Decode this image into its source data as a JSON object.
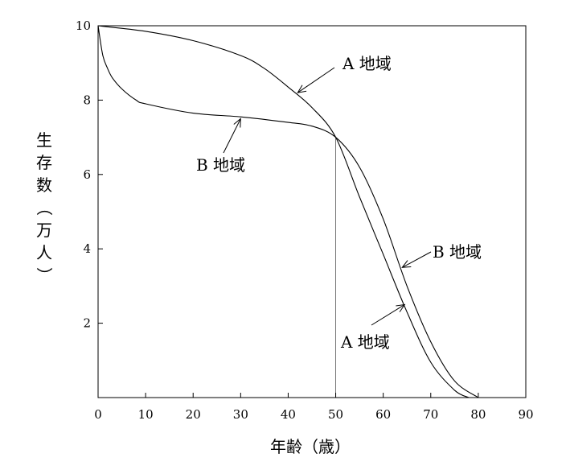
{
  "chart_data": {
    "type": "line",
    "title": "",
    "xlabel": "年齢（歳）",
    "ylabel": "生存数（万人）",
    "xlim": [
      0,
      90
    ],
    "ylim": [
      0,
      10
    ],
    "xticks": [
      0,
      10,
      20,
      30,
      40,
      50,
      60,
      70,
      80,
      90
    ],
    "yticks": [
      2,
      4,
      6,
      8,
      10
    ],
    "grid": false,
    "legend": "none",
    "series": [
      {
        "name": "A 地域",
        "x": [
          0,
          10,
          20,
          30,
          35,
          40,
          45,
          50,
          55,
          60,
          65,
          70,
          75,
          78
        ],
        "y": [
          10.0,
          9.85,
          9.6,
          9.2,
          8.85,
          8.35,
          7.8,
          7.0,
          5.4,
          3.85,
          2.3,
          0.95,
          0.2,
          0.0
        ]
      },
      {
        "name": "B 地域",
        "x": [
          0,
          1,
          2,
          3,
          5,
          8,
          10,
          20,
          30,
          40,
          45,
          50,
          55,
          60,
          65,
          70,
          75,
          80
        ],
        "y": [
          10.0,
          9.2,
          8.85,
          8.6,
          8.3,
          8.0,
          7.9,
          7.65,
          7.55,
          7.4,
          7.3,
          7.0,
          6.2,
          4.8,
          3.0,
          1.5,
          0.45,
          0.0
        ]
      }
    ],
    "annotations": [
      {
        "text": "A 地域",
        "series": "A 地域",
        "x": 42,
        "y": 8.2
      },
      {
        "text": "B 地域",
        "series": "B 地域",
        "x": 30,
        "y": 7.5
      },
      {
        "text": "B 地域",
        "series": "B 地域",
        "x": 64,
        "y": 3.5
      },
      {
        "text": "A 地域",
        "series": "A 地域",
        "x": 64.5,
        "y": 2.5
      }
    ],
    "reference_line": {
      "x": 50,
      "y": 7.0
    }
  }
}
